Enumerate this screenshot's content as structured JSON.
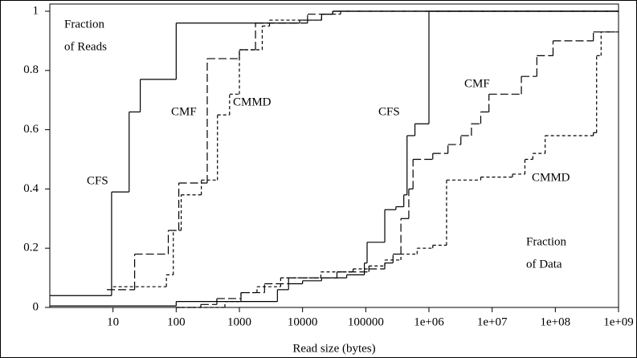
{
  "chart_data": {
    "type": "step",
    "x_label": "Read size (bytes)",
    "annotations": [
      "Fraction",
      "of Reads",
      "Fraction",
      "of Data"
    ],
    "xscale": "log",
    "xlim": [
      1,
      1000000000
    ],
    "xticks": [
      10,
      100,
      1000,
      10000,
      100000,
      {
        "value": 1000000,
        "label": "1e+06"
      },
      {
        "value": 10000000,
        "label": "1e+07"
      },
      {
        "value": 100000000,
        "label": "1e+08"
      },
      {
        "value": 1000000000,
        "label": "1e+09"
      }
    ],
    "ylim": [
      0,
      1
    ],
    "yticks": [
      0,
      0.2,
      0.4,
      0.6,
      0.8,
      1
    ],
    "series": [
      {
        "name": "CFS",
        "color": "#000000",
        "dash": "solid",
        "x": [
          1,
          9.5,
          18,
          27,
          100,
          9000,
          20000,
          30000,
          1000000000
        ],
        "values": [
          0.04,
          0.39,
          0.66,
          0.77,
          0.96,
          0.97,
          0.99,
          1.0,
          1.0
        ]
      },
      {
        "name": "CMF",
        "color": "#000000",
        "dash": "long",
        "x": [
          8,
          22,
          75,
          110,
          310,
          1000,
          1800,
          12000,
          30000,
          1000000000
        ],
        "values": [
          0.06,
          0.18,
          0.26,
          0.42,
          0.84,
          0.87,
          0.96,
          0.99,
          1.0,
          1.0
        ]
      },
      {
        "name": "CMMD",
        "color": "#000000",
        "dash": "short",
        "x": [
          10,
          70,
          90,
          120,
          250,
          450,
          700,
          1000,
          2300,
          3000,
          20000,
          40000,
          1000000000
        ],
        "values": [
          0.07,
          0.11,
          0.26,
          0.38,
          0.43,
          0.65,
          0.72,
          0.87,
          0.95,
          0.97,
          0.99,
          1.0,
          1.0
        ]
      },
      {
        "name": "CFS",
        "color": "#000000",
        "dash": "solid",
        "x": [
          1,
          100,
          4000,
          6000,
          10000,
          20000,
          50000,
          95000,
          105000,
          200000,
          300000,
          400000,
          450000,
          600000,
          1000000,
          1000000000
        ],
        "values": [
          0.005,
          0.02,
          0.06,
          0.08,
          0.09,
          0.1,
          0.11,
          0.15,
          0.22,
          0.33,
          0.34,
          0.38,
          0.58,
          0.62,
          1.0,
          1.0
        ]
      },
      {
        "name": "CMF",
        "color": "#000000",
        "dash": "long",
        "x": [
          100,
          245,
          440,
          1060,
          2500,
          6000,
          35000,
          112000,
          200000,
          270000,
          360000,
          480000,
          560000,
          1150000,
          2000000,
          3200000,
          4700000,
          6600000,
          8900000,
          29000000,
          51000000,
          92000000,
          400000000,
          1000000000
        ],
        "values": [
          0,
          0.01,
          0.03,
          0.05,
          0.08,
          0.1,
          0.12,
          0.13,
          0.15,
          0.18,
          0.3,
          0.4,
          0.5,
          0.52,
          0.55,
          0.58,
          0.62,
          0.66,
          0.72,
          0.78,
          0.85,
          0.9,
          0.93,
          0.93
        ]
      },
      {
        "name": "CMMD",
        "color": "#000000",
        "dash": "short",
        "x": [
          100,
          590,
          1060,
          1900,
          4500,
          19500,
          63000,
          112000,
          200000,
          360000,
          650000,
          1150000,
          1900000,
          6600000,
          21000000,
          33000000,
          44000000,
          69000000,
          400000000,
          450000000,
          530000000,
          1000000000
        ],
        "values": [
          0,
          0.02,
          0.05,
          0.07,
          0.1,
          0.12,
          0.13,
          0.14,
          0.16,
          0.18,
          0.2,
          0.21,
          0.43,
          0.44,
          0.45,
          0.5,
          0.52,
          0.58,
          0.59,
          0.85,
          0.93,
          0.93
        ]
      }
    ]
  }
}
